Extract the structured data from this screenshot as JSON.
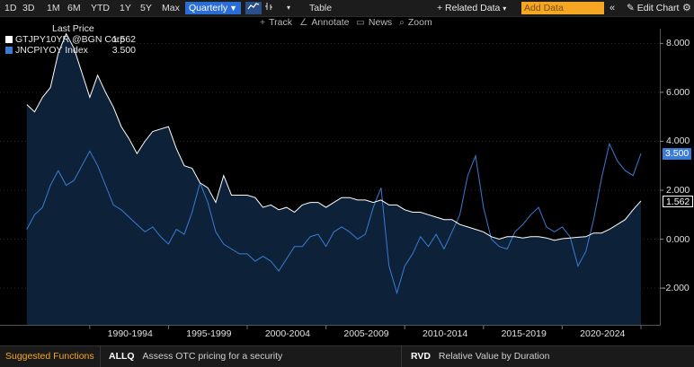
{
  "toolbar": {
    "ranges": [
      "1D",
      "3D",
      "1M",
      "6M",
      "YTD",
      "1Y",
      "5Y",
      "Max"
    ],
    "period": "Quarterly",
    "table_label": "Table",
    "related_data": "+ Related Data",
    "add_data_placeholder": "Add Data",
    "edit_chart": "Edit Chart"
  },
  "toolbar2": {
    "track": "Track",
    "annotate": "Annotate",
    "news": "News",
    "zoom": "Zoom"
  },
  "legend": {
    "header": "Last Price",
    "series": [
      {
        "name": "GTJPY10YR @BGN Corp",
        "value": "1.562",
        "color": "#ffffff"
      },
      {
        "name": "JNCPIYOY Index",
        "value": "3.500",
        "color": "#3a7bd5"
      }
    ]
  },
  "bottom": {
    "suggested": "Suggested Functions",
    "functions": [
      {
        "code": "ALLQ",
        "desc": "Assess OTC pricing for a security"
      },
      {
        "code": "RVD",
        "desc": "Relative Value by Duration"
      }
    ]
  },
  "chart_data": {
    "type": "line",
    "ylim": [
      -3.5,
      8.6
    ],
    "yticks": [
      "8.000",
      "6.000",
      "4.000",
      "2.000",
      "0.000",
      "-2.000"
    ],
    "xlabels": [
      "1990-1994",
      "1995-1999",
      "2000-2004",
      "2005-2009",
      "2010-2014",
      "2015-2019",
      "2020-2024"
    ],
    "markers": [
      {
        "series": "JNCPIYOY Index",
        "label": "3.500",
        "value": 3.5,
        "color": "#3a7bd5"
      },
      {
        "series": "GTJPY10YR @BGN Corp",
        "label": "1.562",
        "value": 1.562,
        "color": "#ffffff"
      }
    ],
    "series": [
      {
        "name": "GTJPY10YR @BGN Corp",
        "color": "#ffffff",
        "x": [
          1986.0,
          1986.5,
          1987.0,
          1987.5,
          1988.0,
          1988.5,
          1989.0,
          1989.5,
          1990.0,
          1990.5,
          1991.0,
          1991.5,
          1992.0,
          1992.5,
          1993.0,
          1993.5,
          1994.0,
          1994.5,
          1995.0,
          1995.5,
          1996.0,
          1996.5,
          1997.0,
          1997.5,
          1998.0,
          1998.5,
          1999.0,
          1999.5,
          2000.0,
          2000.5,
          2001.0,
          2001.5,
          2002.0,
          2002.5,
          2003.0,
          2003.5,
          2004.0,
          2004.5,
          2005.0,
          2005.5,
          2006.0,
          2006.5,
          2007.0,
          2007.5,
          2008.0,
          2008.5,
          2009.0,
          2009.5,
          2010.0,
          2010.5,
          2011.0,
          2011.5,
          2012.0,
          2012.5,
          2013.0,
          2013.5,
          2014.0,
          2014.5,
          2015.0,
          2015.5,
          2016.0,
          2016.5,
          2017.0,
          2017.5,
          2018.0,
          2018.5,
          2019.0,
          2019.5,
          2020.0,
          2020.5,
          2021.0,
          2021.5,
          2022.0,
          2022.5,
          2023.0,
          2023.5,
          2024.0,
          2024.5,
          2025.0
        ],
        "values": [
          5.5,
          5.2,
          5.8,
          6.2,
          7.6,
          8.4,
          7.8,
          6.8,
          5.8,
          6.7,
          6.0,
          5.4,
          4.6,
          4.1,
          3.5,
          4.0,
          4.4,
          4.5,
          4.6,
          3.7,
          3.0,
          2.9,
          2.3,
          2.1,
          1.5,
          2.6,
          1.8,
          1.8,
          1.8,
          1.7,
          1.3,
          1.4,
          1.2,
          1.3,
          1.1,
          1.4,
          1.5,
          1.5,
          1.3,
          1.5,
          1.7,
          1.7,
          1.6,
          1.6,
          1.5,
          1.6,
          1.4,
          1.4,
          1.2,
          1.1,
          1.1,
          1.0,
          0.9,
          0.8,
          0.8,
          0.6,
          0.5,
          0.4,
          0.3,
          0.1,
          0.0,
          0.1,
          0.1,
          0.05,
          0.1,
          0.1,
          0.05,
          -0.05,
          0.02,
          0.05,
          0.08,
          0.1,
          0.25,
          0.25,
          0.4,
          0.6,
          0.8,
          1.2,
          1.562
        ]
      },
      {
        "name": "JNCPIYOY Index",
        "color": "#3a7bd5",
        "x": [
          1986.0,
          1986.5,
          1987.0,
          1987.5,
          1988.0,
          1988.5,
          1989.0,
          1989.5,
          1990.0,
          1990.5,
          1991.0,
          1991.5,
          1992.0,
          1992.5,
          1993.0,
          1993.5,
          1994.0,
          1994.5,
          1995.0,
          1995.5,
          1996.0,
          1996.5,
          1997.0,
          1997.5,
          1998.0,
          1998.5,
          1999.0,
          1999.5,
          2000.0,
          2000.5,
          2001.0,
          2001.5,
          2002.0,
          2002.5,
          2003.0,
          2003.5,
          2004.0,
          2004.5,
          2005.0,
          2005.5,
          2006.0,
          2006.5,
          2007.0,
          2007.5,
          2008.0,
          2008.5,
          2009.0,
          2009.5,
          2010.0,
          2010.5,
          2011.0,
          2011.5,
          2012.0,
          2012.5,
          2013.0,
          2013.5,
          2014.0,
          2014.5,
          2015.0,
          2015.5,
          2016.0,
          2016.5,
          2017.0,
          2017.5,
          2018.0,
          2018.5,
          2019.0,
          2019.5,
          2020.0,
          2020.5,
          2021.0,
          2021.5,
          2022.0,
          2022.5,
          2023.0,
          2023.5,
          2024.0,
          2024.5,
          2025.0
        ],
        "values": [
          0.4,
          1.0,
          1.3,
          2.2,
          2.8,
          2.2,
          2.4,
          3.0,
          3.6,
          3.0,
          2.2,
          1.4,
          1.2,
          0.9,
          0.6,
          0.3,
          0.5,
          0.1,
          -0.2,
          0.4,
          0.2,
          1.1,
          2.3,
          1.5,
          0.3,
          -0.2,
          -0.4,
          -0.6,
          -0.6,
          -0.9,
          -0.7,
          -0.9,
          -1.3,
          -0.8,
          -0.3,
          -0.3,
          0.1,
          0.2,
          -0.3,
          0.3,
          0.5,
          0.3,
          0.0,
          0.2,
          1.3,
          2.1,
          -1.1,
          -2.2,
          -1.1,
          -0.6,
          0.1,
          -0.3,
          0.2,
          -0.4,
          0.3,
          1.0,
          2.6,
          3.4,
          1.3,
          0.0,
          -0.3,
          -0.4,
          0.3,
          0.6,
          1.0,
          1.3,
          0.5,
          0.3,
          0.5,
          0.1,
          -1.1,
          -0.5,
          0.8,
          2.5,
          3.9,
          3.2,
          2.8,
          2.6,
          3.5
        ]
      }
    ]
  }
}
